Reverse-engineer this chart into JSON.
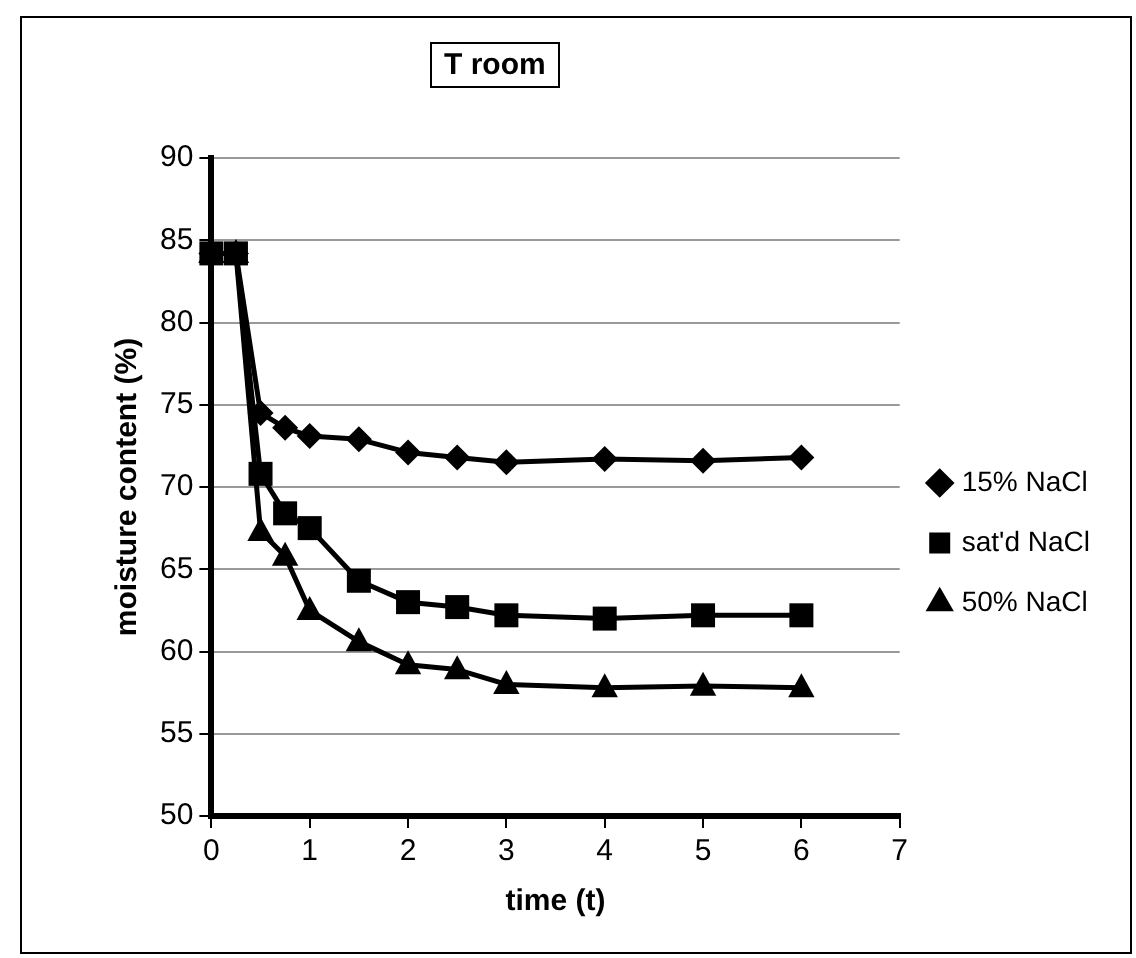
{
  "chart_data": {
    "type": "line",
    "title": "T room",
    "xlabel": "time (t)",
    "ylabel": "moisture content (%)",
    "x": [
      0,
      0.25,
      0.5,
      0.75,
      1,
      1.5,
      2,
      2.5,
      3,
      4,
      5,
      6
    ],
    "series": [
      {
        "name": "15% NaCl",
        "color": "#000000",
        "marker": "diamond",
        "values": [
          84.2,
          84.2,
          74.5,
          73.6,
          73.1,
          72.9,
          72.1,
          71.8,
          71.5,
          71.7,
          71.6,
          71.8
        ]
      },
      {
        "name": "sat'd NaCl",
        "color": "#000000",
        "marker": "square",
        "values": [
          84.2,
          84.2,
          70.8,
          68.4,
          67.5,
          64.3,
          63.0,
          62.7,
          62.2,
          62.0,
          62.2,
          62.2
        ]
      },
      {
        "name": "50% NaCl",
        "color": "#000000",
        "marker": "triangle",
        "values": [
          84.2,
          84.2,
          67.3,
          65.8,
          62.5,
          60.6,
          59.2,
          58.9,
          58.0,
          57.8,
          57.9,
          57.8
        ]
      }
    ],
    "xlim": [
      0,
      7
    ],
    "xticks": [
      0,
      1,
      2,
      3,
      4,
      5,
      6,
      7
    ],
    "ylim": [
      50,
      90
    ],
    "yticks": [
      50,
      55,
      60,
      65,
      70,
      75,
      80,
      85,
      90
    ],
    "grid": "y",
    "legend": "right"
  }
}
